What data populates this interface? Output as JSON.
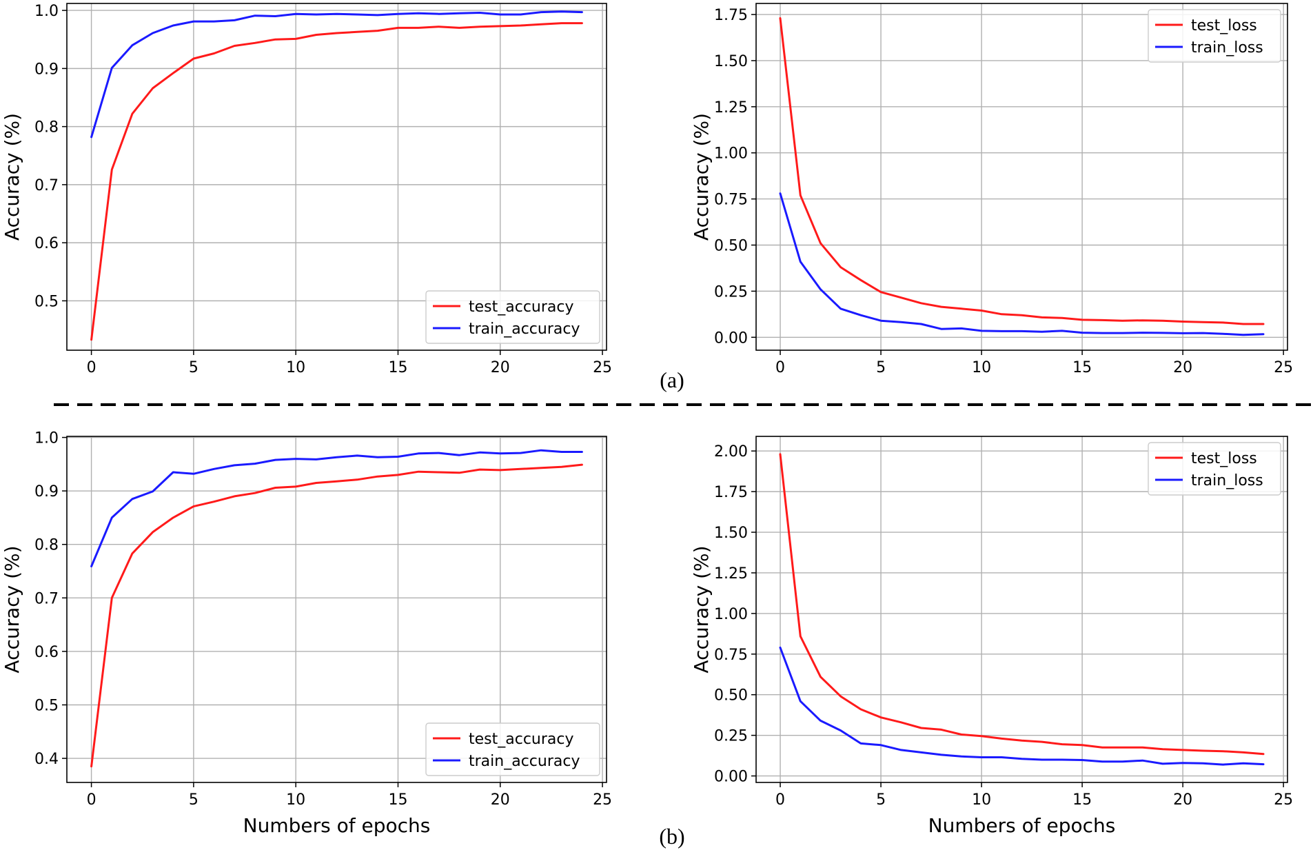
{
  "figure": {
    "captions": [
      "(a)",
      "(b)"
    ],
    "separator": "dashed"
  },
  "colors": {
    "test": "#ff1a1a",
    "train": "#1a1aff"
  },
  "chart_data": [
    {
      "id": "a-left",
      "type": "line",
      "panel": "(a)",
      "title": "",
      "xlabel": "",
      "ylabel": "Accuracy (%)",
      "xlim": [
        -1.2,
        25.2
      ],
      "ylim": [
        0.415,
        1.012
      ],
      "xticks": [
        0,
        5,
        10,
        15,
        20,
        25
      ],
      "yticks": [
        0.5,
        0.6,
        0.7,
        0.8,
        0.9,
        1.0
      ],
      "yticklabels": [
        "0.5",
        "0.6",
        "0.7",
        "0.8",
        "0.9",
        "1.0"
      ],
      "grid": true,
      "legend_position": "lower-right",
      "x": [
        0,
        1,
        2,
        3,
        4,
        5,
        6,
        7,
        8,
        9,
        10,
        11,
        12,
        13,
        14,
        15,
        16,
        17,
        18,
        19,
        20,
        21,
        22,
        23,
        24
      ],
      "series": [
        {
          "name": "test_accuracy",
          "color_key": "test",
          "values": [
            0.433,
            0.726,
            0.822,
            0.866,
            0.892,
            0.917,
            0.926,
            0.939,
            0.944,
            0.95,
            0.951,
            0.958,
            0.961,
            0.963,
            0.965,
            0.97,
            0.97,
            0.972,
            0.97,
            0.972,
            0.973,
            0.974,
            0.976,
            0.978,
            0.978
          ]
        },
        {
          "name": "train_accuracy",
          "color_key": "train",
          "values": [
            0.782,
            0.901,
            0.94,
            0.961,
            0.974,
            0.981,
            0.981,
            0.983,
            0.991,
            0.99,
            0.994,
            0.993,
            0.994,
            0.993,
            0.992,
            0.994,
            0.995,
            0.994,
            0.995,
            0.996,
            0.993,
            0.993,
            0.997,
            0.998,
            0.997
          ]
        }
      ]
    },
    {
      "id": "a-right",
      "type": "line",
      "panel": "(a)",
      "title": "",
      "xlabel": "",
      "ylabel": "Accuracy (%)",
      "xlim": [
        -1.2,
        25.2
      ],
      "ylim": [
        -0.07,
        1.81
      ],
      "xticks": [
        0,
        5,
        10,
        15,
        20,
        25
      ],
      "yticks": [
        0,
        0.25,
        0.5,
        0.75,
        1.0,
        1.25,
        1.5,
        1.75
      ],
      "yticklabels": [
        "0.00",
        "0.25",
        "0.50",
        "0.75",
        "1.00",
        "1.25",
        "1.50",
        "1.75"
      ],
      "grid": true,
      "legend_position": "upper-right",
      "x": [
        0,
        1,
        2,
        3,
        4,
        5,
        6,
        7,
        8,
        9,
        10,
        11,
        12,
        13,
        14,
        15,
        16,
        17,
        18,
        19,
        20,
        21,
        22,
        23,
        24
      ],
      "series": [
        {
          "name": "test_loss",
          "color_key": "test",
          "values": [
            1.73,
            0.77,
            0.51,
            0.38,
            0.31,
            0.245,
            0.215,
            0.185,
            0.165,
            0.155,
            0.145,
            0.125,
            0.12,
            0.108,
            0.105,
            0.095,
            0.093,
            0.09,
            0.092,
            0.09,
            0.085,
            0.082,
            0.08,
            0.072,
            0.072
          ]
        },
        {
          "name": "train_loss",
          "color_key": "train",
          "values": [
            0.78,
            0.41,
            0.26,
            0.155,
            0.12,
            0.09,
            0.082,
            0.072,
            0.045,
            0.048,
            0.035,
            0.033,
            0.033,
            0.03,
            0.035,
            0.025,
            0.023,
            0.023,
            0.025,
            0.024,
            0.022,
            0.023,
            0.019,
            0.013,
            0.017
          ]
        }
      ]
    },
    {
      "id": "b-left",
      "type": "line",
      "panel": "(b)",
      "title": "",
      "xlabel": "Numbers of epochs",
      "ylabel": "Accuracy (%)",
      "xlim": [
        -1.2,
        25.2
      ],
      "ylim": [
        0.355,
        1.002
      ],
      "xticks": [
        0,
        5,
        10,
        15,
        20,
        25
      ],
      "yticks": [
        0.4,
        0.5,
        0.6,
        0.7,
        0.8,
        0.9,
        1.0
      ],
      "yticklabels": [
        "0.4",
        "0.5",
        "0.6",
        "0.7",
        "0.8",
        "0.9",
        "1.0"
      ],
      "grid": true,
      "legend_position": "lower-right",
      "x": [
        0,
        1,
        2,
        3,
        4,
        5,
        6,
        7,
        8,
        9,
        10,
        11,
        12,
        13,
        14,
        15,
        16,
        17,
        18,
        19,
        20,
        21,
        22,
        23,
        24
      ],
      "series": [
        {
          "name": "test_accuracy",
          "color_key": "test",
          "values": [
            0.385,
            0.7,
            0.783,
            0.823,
            0.85,
            0.871,
            0.88,
            0.89,
            0.896,
            0.906,
            0.908,
            0.915,
            0.918,
            0.921,
            0.927,
            0.93,
            0.936,
            0.935,
            0.934,
            0.94,
            0.939,
            0.941,
            0.943,
            0.945,
            0.949
          ]
        },
        {
          "name": "train_accuracy",
          "color_key": "train",
          "values": [
            0.759,
            0.85,
            0.885,
            0.899,
            0.935,
            0.932,
            0.941,
            0.948,
            0.951,
            0.958,
            0.96,
            0.959,
            0.963,
            0.966,
            0.963,
            0.964,
            0.97,
            0.971,
            0.967,
            0.972,
            0.97,
            0.971,
            0.976,
            0.973,
            0.973
          ]
        }
      ]
    },
    {
      "id": "b-right",
      "type": "line",
      "panel": "(b)",
      "title": "",
      "xlabel": "Numbers of epochs",
      "ylabel": "Accuracy (%)",
      "xlim": [
        -1.2,
        25.2
      ],
      "ylim": [
        -0.04,
        2.09
      ],
      "xticks": [
        0,
        5,
        10,
        15,
        20,
        25
      ],
      "yticks": [
        0,
        0.25,
        0.5,
        0.75,
        1.0,
        1.25,
        1.5,
        1.75,
        2.0
      ],
      "yticklabels": [
        "0.00",
        "0.25",
        "0.50",
        "0.75",
        "1.00",
        "1.25",
        "1.50",
        "1.75",
        "2.00"
      ],
      "grid": true,
      "legend_position": "upper-right",
      "x": [
        0,
        1,
        2,
        3,
        4,
        5,
        6,
        7,
        8,
        9,
        10,
        11,
        12,
        13,
        14,
        15,
        16,
        17,
        18,
        19,
        20,
        21,
        22,
        23,
        24
      ],
      "series": [
        {
          "name": "test_loss",
          "color_key": "test",
          "values": [
            1.98,
            0.86,
            0.61,
            0.49,
            0.41,
            0.36,
            0.33,
            0.295,
            0.285,
            0.255,
            0.245,
            0.23,
            0.218,
            0.21,
            0.195,
            0.19,
            0.175,
            0.175,
            0.175,
            0.165,
            0.16,
            0.155,
            0.152,
            0.145,
            0.135
          ]
        },
        {
          "name": "train_loss",
          "color_key": "train",
          "values": [
            0.79,
            0.46,
            0.34,
            0.28,
            0.2,
            0.19,
            0.16,
            0.145,
            0.13,
            0.12,
            0.115,
            0.115,
            0.105,
            0.1,
            0.1,
            0.098,
            0.088,
            0.088,
            0.095,
            0.075,
            0.08,
            0.078,
            0.07,
            0.078,
            0.072
          ]
        }
      ]
    }
  ]
}
